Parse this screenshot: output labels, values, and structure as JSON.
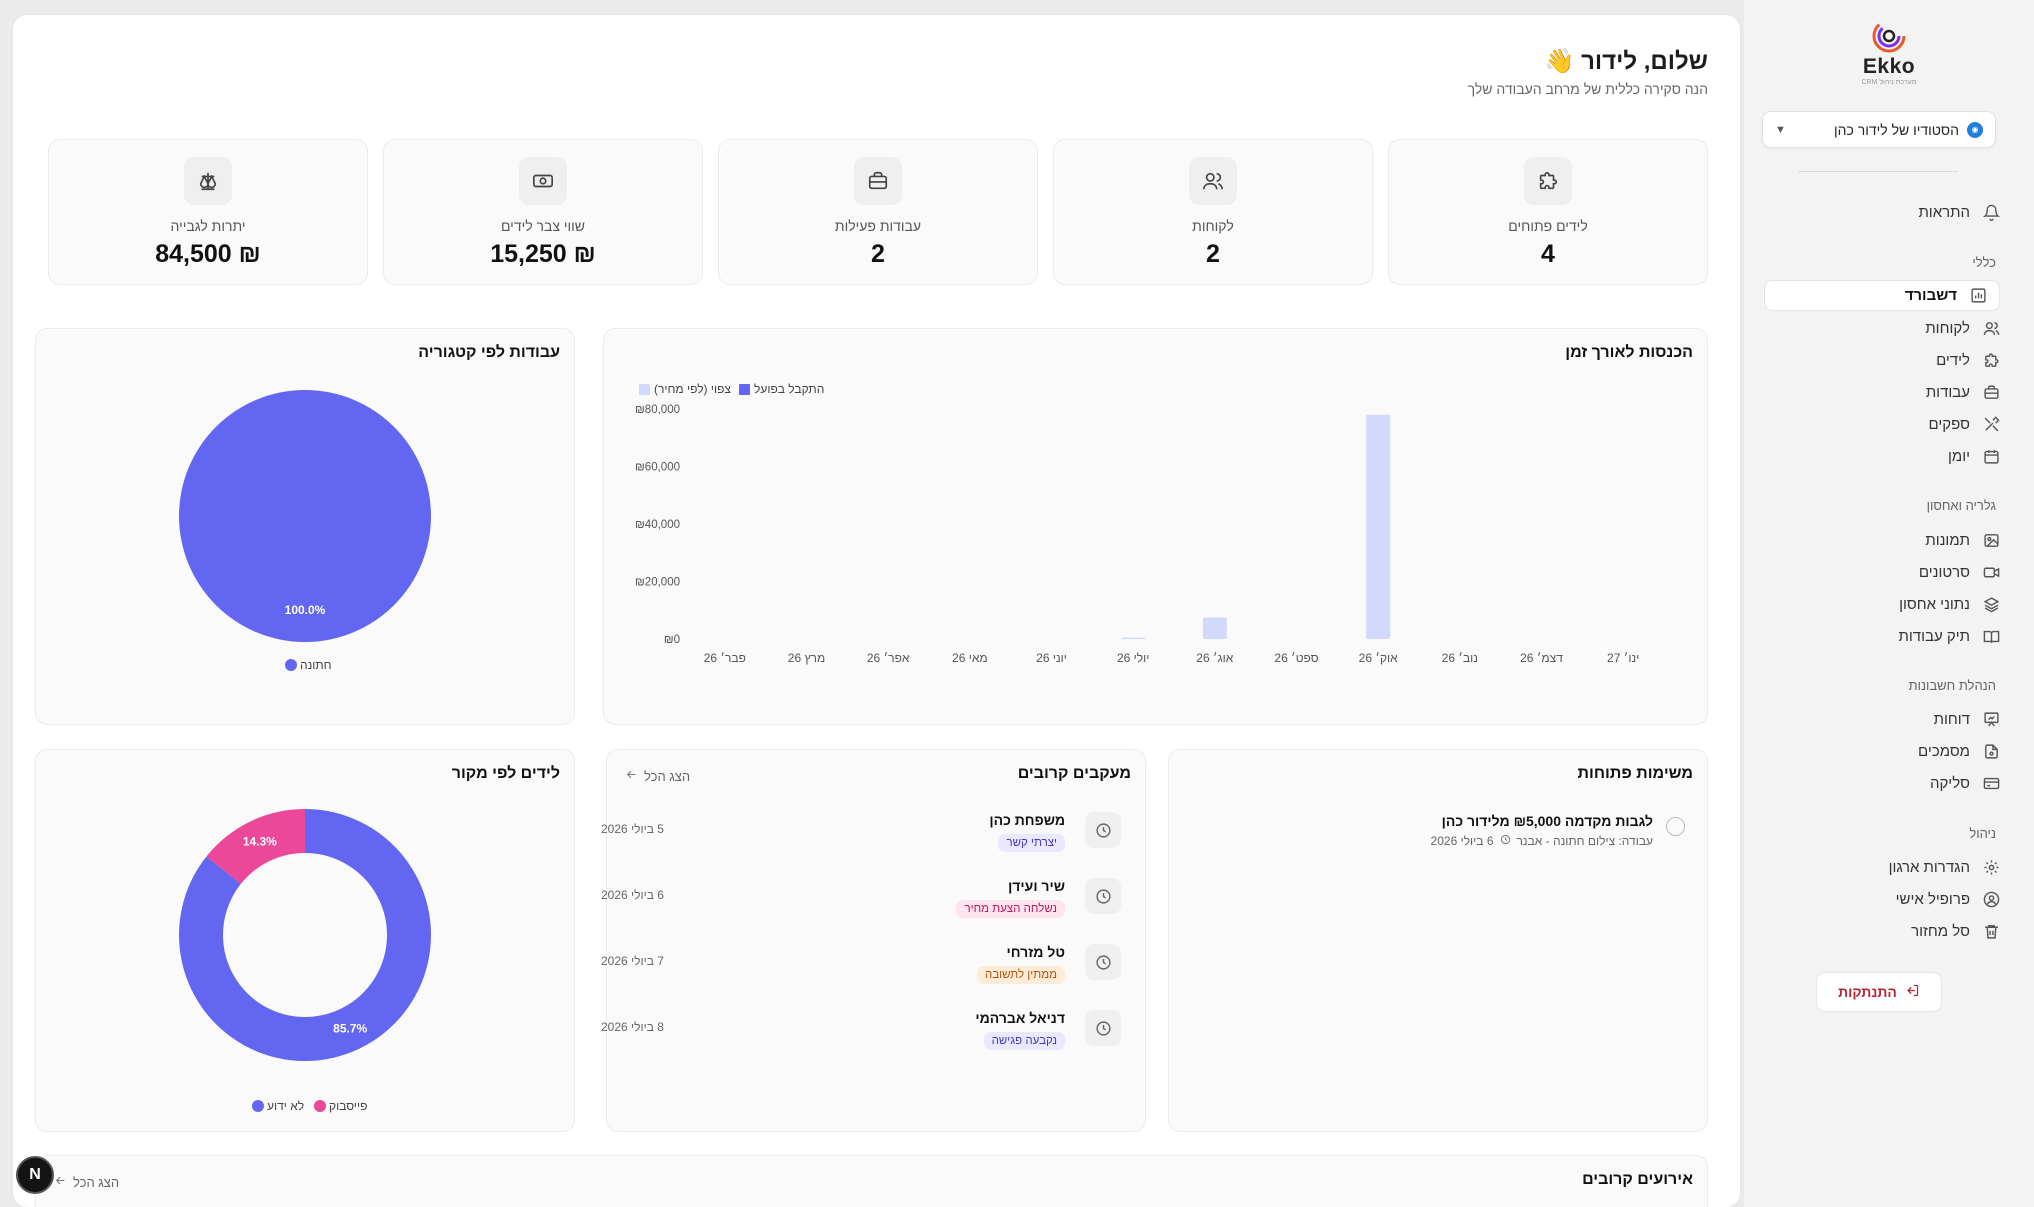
{
  "sidebar": {
    "logo_text": "Ekko",
    "logo_sub": "מערכת ניהול CRM",
    "workspace": "הסטודיו של לידור כהן",
    "notifications": "התראות",
    "sections": {
      "general": "כללי",
      "gallery": "גלריה ואחסון",
      "accounting": "הנהלת חשבונות",
      "management": "ניהול"
    },
    "items": {
      "dashboard": "דשבורד",
      "clients": "לקוחות",
      "leads": "לידים",
      "jobs": "עבודות",
      "suppliers": "ספקים",
      "calendar": "יומן",
      "photos": "תמונות",
      "videos": "סרטונים",
      "storage": "נתוני אחסון",
      "portfolio": "תיק עבודות",
      "reports": "דוחות",
      "documents": "מסמכים",
      "clearing": "סליקה",
      "org_settings": "הגדרות ארגון",
      "profile": "פרופיל אישי",
      "trash": "סל מחזור"
    },
    "logout": "התנתקות"
  },
  "header": {
    "greeting": "שלום, לידור 👋",
    "subtitle": "הנה סקירה כללית של מרחב העבודה שלך"
  },
  "stats": {
    "open_leads": {
      "label": "לידים פתוחים",
      "value": "4"
    },
    "clients": {
      "label": "לקוחות",
      "value": "2"
    },
    "active_jobs": {
      "label": "עבודות פעילות",
      "value": "2"
    },
    "lead_pipeline": {
      "label": "שווי צבר לידים",
      "value": "₪ 15,250"
    },
    "balance_due": {
      "label": "יתרות לגבייה",
      "value": "₪ 84,500"
    }
  },
  "revenue_card": {
    "title": "הכנסות לאורך זמן",
    "legend_actual": "התקבל בפועל",
    "legend_expected": "צפוי (לפי מחיר)"
  },
  "category_card": {
    "title": "עבודות לפי קטגוריה",
    "legend": "חתונה"
  },
  "tasks_card": {
    "title": "משימות פתוחות",
    "task_title": "לגבות מקדמה ₪5,000 מלידור כהן",
    "task_job": "עבודה: צילום חתונה - אבנר",
    "task_date": "6 ביולי 2026"
  },
  "followups_card": {
    "title": "מעקבים קרובים",
    "show_all": "הצג הכל",
    "rows": [
      {
        "name": "משפחת כהן",
        "badge": "יצרתי קשר",
        "date": "5 ביולי 2026"
      },
      {
        "name": "שיר ועידן",
        "badge": "נשלחה הצעת מחיר",
        "date": "6 ביולי 2026"
      },
      {
        "name": "טל מזרחי",
        "badge": "ממתין לתשובה",
        "date": "7 ביולי 2026"
      },
      {
        "name": "דניאל אברהמי",
        "badge": "נקבעה פגישה",
        "date": "8 ביולי 2026"
      }
    ]
  },
  "source_card": {
    "title": "לידים לפי מקור",
    "legend_facebook": "פייסבוק",
    "legend_unknown": "לא ידוע"
  },
  "events_card": {
    "title": "אירועים קרובים",
    "show_all": "הצג הכל"
  },
  "dev_badge": "N",
  "colors": {
    "primary": "#6366f1",
    "expected": "#d3d9fb",
    "pink": "#ec4899",
    "accent_red": "#b4253a"
  },
  "chart_data": [
    {
      "type": "bar",
      "title": "הכנסות לאורך זמן",
      "categories": [
        "פבר׳ 26",
        "מרץ 26",
        "אפר׳ 26",
        "מאי 26",
        "יוני 26",
        "יולי 26",
        "אוג׳ 26",
        "ספט׳ 26",
        "אוק׳ 26",
        "נוב׳ 26",
        "דצמ׳ 26",
        "ינו׳ 27"
      ],
      "series": [
        {
          "name": "התקבל בפועל",
          "values": [
            0,
            0,
            0,
            0,
            0,
            0,
            0,
            0,
            0,
            0,
            0,
            0
          ]
        },
        {
          "name": "צפוי (לפי מחיר)",
          "values": [
            0,
            0,
            0,
            0,
            0,
            500,
            7500,
            0,
            78000,
            0,
            0,
            0
          ]
        }
      ],
      "y_ticks": [
        "₪0",
        "₪20,000",
        "₪40,000",
        "₪60,000",
        "₪80,000"
      ],
      "ylim": [
        0,
        80000
      ],
      "legend_placement": "top-right"
    },
    {
      "type": "pie",
      "title": "עבודות לפי קטגוריה",
      "slices": [
        {
          "label": "חתונה",
          "value": 100.0,
          "display": "100.0%"
        }
      ]
    },
    {
      "type": "pie",
      "title": "לידים לפי מקור",
      "donut": true,
      "slices": [
        {
          "label": "לא ידוע",
          "value": 85.7,
          "display": "85.7%"
        },
        {
          "label": "פייסבוק",
          "value": 14.3,
          "display": "14.3%"
        }
      ]
    }
  ]
}
